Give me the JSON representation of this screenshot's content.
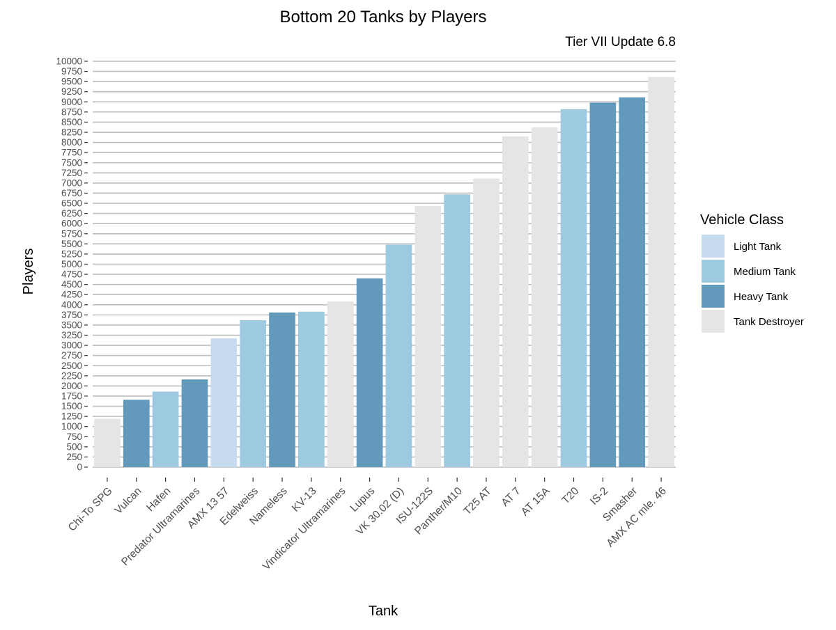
{
  "chart_data": {
    "type": "bar",
    "title": "Bottom 20 Tanks by Players",
    "subtitle": "Tier VII Update 6.8",
    "xlabel": "Tank",
    "ylabel": "Players",
    "ylim": [
      0,
      10000
    ],
    "y_tick_step": 250,
    "grid": true,
    "legend": {
      "title": "Vehicle Class",
      "position": "right",
      "entries": [
        {
          "label": "Light Tank",
          "color": "#c6dbef"
        },
        {
          "label": "Medium Tank",
          "color": "#9ecae1"
        },
        {
          "label": "Heavy Tank",
          "color": "#6399bb"
        },
        {
          "label": "Tank Destroyer",
          "color": "#e5e5e5"
        }
      ]
    },
    "categories": [
      "Chi-To SPG",
      "Vulcan",
      "Hafen",
      "Predator Ultramarines",
      "AMX 13 57",
      "Edelweiss",
      "Nameless",
      "KV-13",
      "Vindicator Ultramarines",
      "Lupus",
      "VK 30.02 (D)",
      "ISU-122S",
      "Panther/M10",
      "T25 AT",
      "AT 7",
      "AT 15A",
      "T20",
      "IS-2",
      "Smasher",
      "AMX AC mle. 46"
    ],
    "values": [
      1190,
      1660,
      1860,
      2160,
      3170,
      3620,
      3810,
      3830,
      4080,
      4650,
      5480,
      6430,
      6720,
      7110,
      8150,
      8370,
      8820,
      8980,
      9110,
      9610
    ],
    "classes": [
      "Tank Destroyer",
      "Heavy Tank",
      "Medium Tank",
      "Heavy Tank",
      "Light Tank",
      "Medium Tank",
      "Heavy Tank",
      "Medium Tank",
      "Tank Destroyer",
      "Heavy Tank",
      "Medium Tank",
      "Tank Destroyer",
      "Medium Tank",
      "Tank Destroyer",
      "Tank Destroyer",
      "Tank Destroyer",
      "Medium Tank",
      "Heavy Tank",
      "Heavy Tank",
      "Tank Destroyer"
    ]
  }
}
